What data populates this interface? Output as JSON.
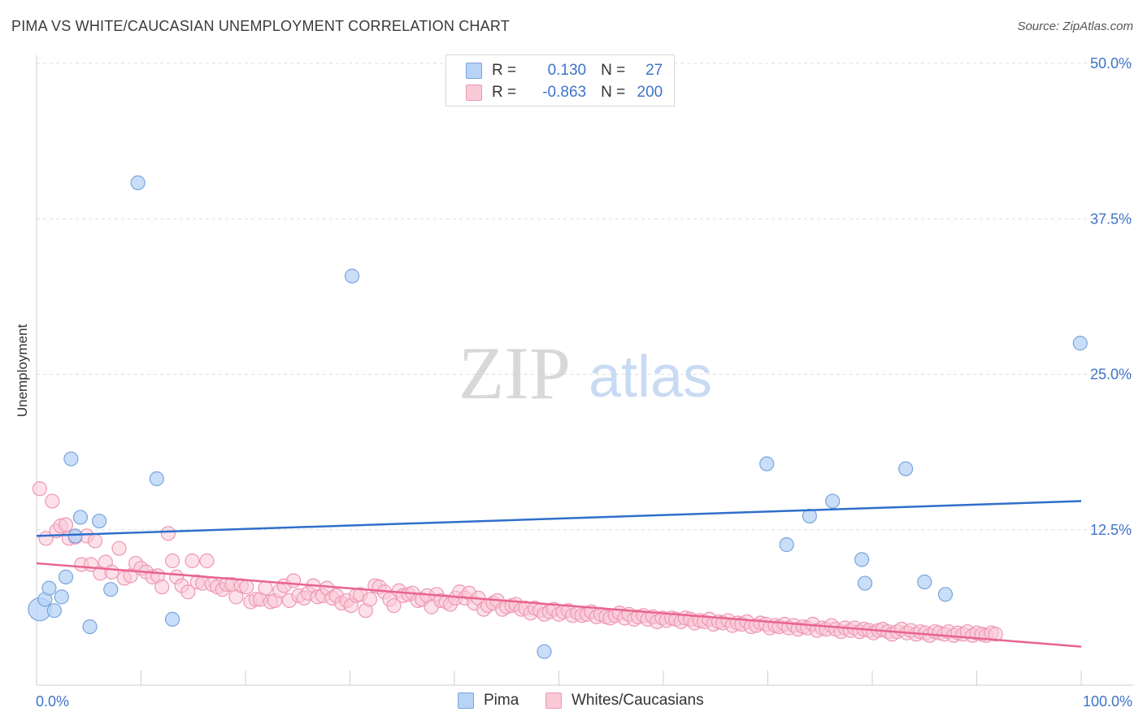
{
  "header": {
    "title": "PIMA VS WHITE/CAUCASIAN UNEMPLOYMENT CORRELATION CHART",
    "source": "Source: ZipAtlas.com"
  },
  "watermark": {
    "zip": "ZIP",
    "atlas": "atlas"
  },
  "colors": {
    "blue_fill": "#b7d3f5",
    "blue_stroke": "#7aa5dd",
    "blue_line": "#2f6fcb",
    "pink_fill": "#f9c9d7",
    "pink_stroke": "#ee98b3",
    "pink_line": "#e8648f",
    "axis_label": "#3f74c9",
    "grid": "#dddddd"
  },
  "legend": {
    "rows": [
      {
        "r_label": "R =",
        "r_value": "0.130",
        "n_label": "N =",
        "n_value": "27"
      },
      {
        "r_label": "R =",
        "r_value": "-0.863",
        "n_label": "N =",
        "n_value": "200"
      }
    ]
  },
  "bottom_legend": {
    "items": [
      {
        "label": "Pima"
      },
      {
        "label": "Whites/Caucasians"
      }
    ]
  },
  "chart_data": {
    "type": "scatter",
    "title": "PIMA VS WHITE/CAUCASIAN UNEMPLOYMENT CORRELATION CHART",
    "xlabel": "",
    "ylabel": "Unemployment",
    "xlim": [
      0,
      100
    ],
    "ylim": [
      0,
      50
    ],
    "x_tick_labels": [
      "0.0%",
      "100.0%"
    ],
    "y_ticks": [
      12.5,
      25.0,
      37.5,
      50.0
    ],
    "y_tick_labels": [
      "12.5%",
      "25.0%",
      "37.5%",
      "50.0%"
    ],
    "grid": true,
    "legend_position": "top-center",
    "series": [
      {
        "name": "Pima",
        "R": 0.13,
        "N": 27,
        "trend": {
          "x": [
            0,
            100
          ],
          "y": [
            12.0,
            14.8
          ]
        },
        "points": [
          [
            0.3,
            6.1
          ],
          [
            0.8,
            6.9
          ],
          [
            1.2,
            7.8
          ],
          [
            1.7,
            6.0
          ],
          [
            2.4,
            7.1
          ],
          [
            2.8,
            8.7
          ],
          [
            3.3,
            18.2
          ],
          [
            3.7,
            12.0
          ],
          [
            4.2,
            13.5
          ],
          [
            5.1,
            4.7
          ],
          [
            6.0,
            13.2
          ],
          [
            7.1,
            7.7
          ],
          [
            9.7,
            40.4
          ],
          [
            11.5,
            16.6
          ],
          [
            13.0,
            5.3
          ],
          [
            30.2,
            32.9
          ],
          [
            48.6,
            2.7
          ],
          [
            69.9,
            17.8
          ],
          [
            71.8,
            11.3
          ],
          [
            74.0,
            13.6
          ],
          [
            76.2,
            14.8
          ],
          [
            79.0,
            10.1
          ],
          [
            79.3,
            8.2
          ],
          [
            83.2,
            17.4
          ],
          [
            85.0,
            8.3
          ],
          [
            87.0,
            7.3
          ],
          [
            99.9,
            27.5
          ]
        ]
      },
      {
        "name": "Whites/Caucasians",
        "R": -0.863,
        "N": 200,
        "trend": {
          "x": [
            0,
            100
          ],
          "y": [
            9.8,
            3.1
          ]
        },
        "points": [
          [
            0.3,
            15.8
          ],
          [
            0.9,
            11.8
          ],
          [
            1.5,
            14.8
          ],
          [
            1.9,
            12.4
          ],
          [
            2.3,
            12.8
          ],
          [
            2.8,
            12.9
          ],
          [
            3.1,
            11.8
          ],
          [
            3.7,
            11.9
          ],
          [
            4.3,
            9.7
          ],
          [
            4.8,
            12.0
          ],
          [
            5.2,
            9.7
          ],
          [
            5.6,
            11.6
          ],
          [
            6.1,
            9.0
          ],
          [
            6.6,
            9.9
          ],
          [
            7.2,
            9.1
          ],
          [
            7.9,
            11.0
          ],
          [
            8.4,
            8.6
          ],
          [
            9.0,
            8.8
          ],
          [
            9.5,
            9.8
          ],
          [
            10.0,
            9.4
          ],
          [
            10.5,
            9.1
          ],
          [
            11.1,
            8.7
          ],
          [
            11.6,
            8.8
          ],
          [
            12.0,
            7.9
          ],
          [
            12.6,
            12.2
          ],
          [
            13.0,
            10.0
          ],
          [
            13.4,
            8.7
          ],
          [
            13.9,
            8.0
          ],
          [
            14.5,
            7.5
          ],
          [
            14.9,
            10.0
          ],
          [
            15.4,
            8.3
          ],
          [
            15.9,
            8.2
          ],
          [
            16.3,
            10.0
          ],
          [
            16.8,
            8.1
          ],
          [
            17.3,
            7.9
          ],
          [
            17.8,
            7.7
          ],
          [
            18.2,
            8.1
          ],
          [
            18.7,
            8.1
          ],
          [
            19.1,
            7.1
          ],
          [
            19.6,
            8.0
          ],
          [
            20.1,
            7.9
          ],
          [
            20.5,
            6.7
          ],
          [
            21.0,
            6.9
          ],
          [
            21.4,
            6.9
          ],
          [
            21.9,
            7.8
          ],
          [
            22.4,
            6.7
          ],
          [
            22.8,
            6.8
          ],
          [
            23.3,
            7.6
          ],
          [
            23.7,
            8.0
          ],
          [
            24.2,
            6.8
          ],
          [
            24.6,
            8.4
          ],
          [
            25.1,
            7.2
          ],
          [
            25.6,
            7.0
          ],
          [
            26.0,
            7.4
          ],
          [
            26.5,
            8.0
          ],
          [
            26.9,
            7.1
          ],
          [
            27.4,
            7.2
          ],
          [
            27.8,
            7.8
          ],
          [
            28.3,
            7.0
          ],
          [
            28.7,
            7.2
          ],
          [
            29.2,
            6.6
          ],
          [
            29.7,
            6.8
          ],
          [
            30.1,
            6.4
          ],
          [
            30.6,
            7.2
          ],
          [
            31.0,
            7.3
          ],
          [
            31.5,
            6.0
          ],
          [
            31.9,
            6.9
          ],
          [
            32.4,
            8.0
          ],
          [
            32.8,
            7.9
          ],
          [
            33.3,
            7.5
          ],
          [
            33.8,
            6.9
          ],
          [
            34.2,
            6.4
          ],
          [
            34.7,
            7.6
          ],
          [
            35.1,
            7.2
          ],
          [
            35.6,
            7.3
          ],
          [
            36.0,
            7.4
          ],
          [
            36.5,
            6.8
          ],
          [
            36.9,
            6.9
          ],
          [
            37.4,
            7.2
          ],
          [
            37.8,
            6.3
          ],
          [
            38.3,
            7.3
          ],
          [
            38.7,
            6.8
          ],
          [
            39.2,
            6.7
          ],
          [
            39.6,
            6.5
          ],
          [
            40.1,
            7.0
          ],
          [
            40.5,
            7.5
          ],
          [
            41.0,
            7.0
          ],
          [
            41.4,
            7.4
          ],
          [
            41.9,
            6.6
          ],
          [
            42.3,
            7.0
          ],
          [
            42.8,
            6.1
          ],
          [
            43.2,
            6.4
          ],
          [
            43.7,
            6.6
          ],
          [
            44.1,
            6.8
          ],
          [
            44.6,
            6.1
          ],
          [
            45.0,
            6.3
          ],
          [
            45.5,
            6.4
          ],
          [
            45.9,
            6.5
          ],
          [
            46.4,
            6.1
          ],
          [
            46.8,
            6.2
          ],
          [
            47.3,
            5.8
          ],
          [
            47.7,
            6.2
          ],
          [
            48.2,
            6.0
          ],
          [
            48.6,
            5.7
          ],
          [
            49.1,
            5.9
          ],
          [
            49.5,
            6.1
          ],
          [
            50.0,
            5.7
          ],
          [
            50.4,
            5.9
          ],
          [
            50.9,
            6.0
          ],
          [
            51.3,
            5.6
          ],
          [
            51.8,
            5.8
          ],
          [
            52.2,
            5.6
          ],
          [
            52.7,
            5.7
          ],
          [
            53.1,
            5.9
          ],
          [
            53.6,
            5.5
          ],
          [
            54.0,
            5.7
          ],
          [
            54.5,
            5.5
          ],
          [
            54.9,
            5.4
          ],
          [
            55.4,
            5.6
          ],
          [
            55.8,
            5.8
          ],
          [
            56.3,
            5.4
          ],
          [
            56.7,
            5.7
          ],
          [
            57.2,
            5.3
          ],
          [
            57.6,
            5.5
          ],
          [
            58.1,
            5.6
          ],
          [
            58.5,
            5.3
          ],
          [
            59.0,
            5.5
          ],
          [
            59.4,
            5.1
          ],
          [
            59.9,
            5.4
          ],
          [
            60.3,
            5.2
          ],
          [
            60.8,
            5.4
          ],
          [
            61.2,
            5.3
          ],
          [
            61.7,
            5.1
          ],
          [
            62.1,
            5.4
          ],
          [
            62.6,
            5.3
          ],
          [
            63.0,
            5.0
          ],
          [
            63.5,
            5.2
          ],
          [
            63.9,
            5.1
          ],
          [
            64.4,
            5.3
          ],
          [
            64.8,
            4.9
          ],
          [
            65.3,
            5.1
          ],
          [
            65.7,
            5.0
          ],
          [
            66.2,
            5.2
          ],
          [
            66.6,
            4.8
          ],
          [
            67.1,
            5.0
          ],
          [
            67.5,
            4.9
          ],
          [
            68.0,
            5.1
          ],
          [
            68.4,
            4.7
          ],
          [
            68.9,
            4.8
          ],
          [
            69.3,
            5.0
          ],
          [
            69.8,
            4.9
          ],
          [
            70.2,
            4.6
          ],
          [
            70.7,
            4.8
          ],
          [
            71.1,
            4.7
          ],
          [
            71.6,
            4.9
          ],
          [
            72.0,
            4.6
          ],
          [
            72.5,
            4.8
          ],
          [
            72.9,
            4.5
          ],
          [
            73.4,
            4.7
          ],
          [
            73.8,
            4.6
          ],
          [
            74.3,
            4.9
          ],
          [
            74.7,
            4.4
          ],
          [
            75.2,
            4.6
          ],
          [
            75.6,
            4.5
          ],
          [
            76.1,
            4.8
          ],
          [
            76.5,
            4.5
          ],
          [
            77.0,
            4.3
          ],
          [
            77.4,
            4.6
          ],
          [
            77.9,
            4.4
          ],
          [
            78.3,
            4.6
          ],
          [
            78.8,
            4.3
          ],
          [
            79.2,
            4.5
          ],
          [
            79.7,
            4.4
          ],
          [
            80.1,
            4.2
          ],
          [
            80.6,
            4.4
          ],
          [
            81.0,
            4.5
          ],
          [
            81.5,
            4.3
          ],
          [
            81.9,
            4.1
          ],
          [
            82.4,
            4.3
          ],
          [
            82.8,
            4.5
          ],
          [
            83.3,
            4.2
          ],
          [
            83.7,
            4.4
          ],
          [
            84.2,
            4.1
          ],
          [
            84.6,
            4.3
          ],
          [
            85.1,
            4.2
          ],
          [
            85.5,
            4.0
          ],
          [
            86.0,
            4.3
          ],
          [
            86.4,
            4.2
          ],
          [
            86.9,
            4.1
          ],
          [
            87.3,
            4.3
          ],
          [
            87.8,
            4.0
          ],
          [
            88.2,
            4.2
          ],
          [
            88.7,
            4.1
          ],
          [
            89.1,
            4.3
          ],
          [
            89.6,
            4.0
          ],
          [
            90.0,
            4.2
          ],
          [
            90.5,
            4.1
          ],
          [
            90.9,
            4.0
          ],
          [
            91.4,
            4.2
          ],
          [
            91.8,
            4.1
          ]
        ]
      }
    ]
  }
}
